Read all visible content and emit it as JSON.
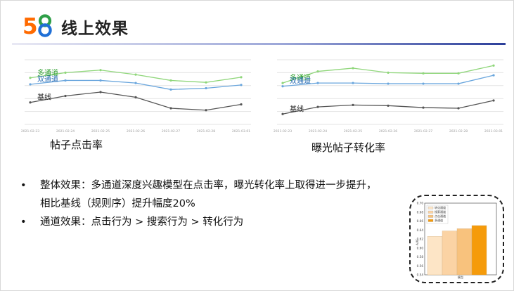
{
  "header": {
    "title": "线上效果"
  },
  "logo": {
    "text": "58",
    "colors": [
      "#ff6a00",
      "#2e9f48",
      "#1f6fd6"
    ]
  },
  "captions": {
    "left": "帖子点击率",
    "right": "曝光帖子转化率"
  },
  "bullets": {
    "b1_line1": "整体效果：多通道深度兴趣模型在点击率，曝光转化率上取得进一步提升，",
    "b1_line2": "相比基线（规则序）提升幅度20%",
    "b2": "通道效果：点击行为 > 搜索行为 > 转化行为",
    "dot": "•"
  },
  "colors": {
    "multi": "#8fd67a",
    "dual": "#6aa6dd",
    "base": "#555555",
    "grid": "#e3e3e3"
  },
  "chart_data": [
    {
      "type": "line",
      "categories": [
        "2021-02-23",
        "2021-02-24",
        "2021-02-25",
        "2021-02-26",
        "2021-02-27",
        "2021-02-28",
        "2021-03-01"
      ],
      "ylim": [
        0,
        100
      ],
      "series": [
        {
          "name": "多通道",
          "values": [
            72,
            80,
            84,
            77,
            68,
            65,
            73
          ]
        },
        {
          "name": "双通道",
          "values": [
            62,
            68,
            68,
            64,
            54,
            56,
            61
          ]
        },
        {
          "name": "基线",
          "values": [
            34,
            44,
            50,
            42,
            25,
            22,
            31
          ]
        }
      ]
    },
    {
      "type": "line",
      "categories": [
        "2021-02-23",
        "2021-02-24",
        "2021-02-25",
        "2021-02-26",
        "2021-02-27",
        "2021-02-28",
        "2021-03-01"
      ],
      "ylim": [
        0,
        100
      ],
      "series": [
        {
          "name": "多通道",
          "values": [
            64,
            82,
            87,
            80,
            79,
            79,
            91
          ]
        },
        {
          "name": "双通道",
          "values": [
            59,
            64,
            64,
            63,
            63,
            63,
            76
          ]
        },
        {
          "name": "基线",
          "values": [
            16,
            27,
            30,
            29,
            26,
            25,
            37
          ]
        }
      ]
    },
    {
      "type": "bar",
      "categories": [
        "转化通道",
        "搜索通道",
        "点击通道",
        "多通道"
      ],
      "values": [
        0.626,
        0.638,
        0.643,
        0.65
      ],
      "colors": [
        "#fde5c6",
        "#fbd3a4",
        "#f8c27d",
        "#f59b0b"
      ],
      "ylim": [
        0.59,
        0.67
      ],
      "yticks": [
        "0.70",
        "0.68",
        "0.66",
        "0.64",
        "0.62",
        "0.60",
        "0.58",
        "0.56",
        "0.54"
      ],
      "ylabel": "AUC",
      "xlabel": "模型",
      "legend": [
        "转化通道",
        "搜索通道",
        "点击通道",
        "多通道"
      ]
    }
  ]
}
